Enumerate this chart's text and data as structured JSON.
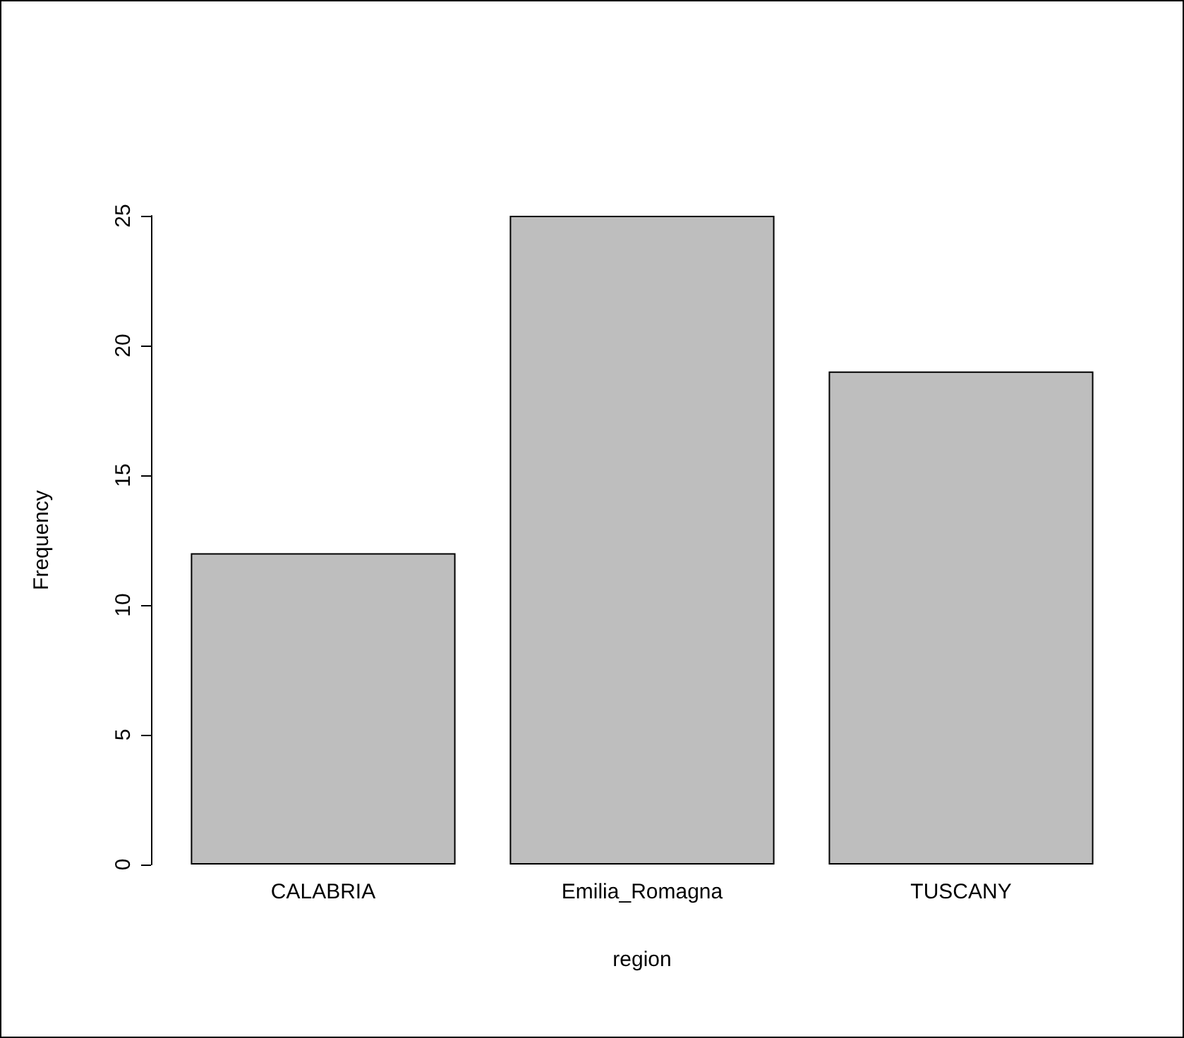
{
  "chart_data": {
    "type": "bar",
    "xlabel": "region",
    "ylabel": "Frequency",
    "categories": [
      "CALABRIA",
      "Emilia_Romagna",
      "TUSCANY"
    ],
    "values": [
      12,
      25,
      19
    ],
    "color": "#bebebe",
    "ylim": [
      0,
      25
    ],
    "yticks": [
      0,
      5,
      10,
      15,
      20,
      25
    ],
    "grid": false
  }
}
